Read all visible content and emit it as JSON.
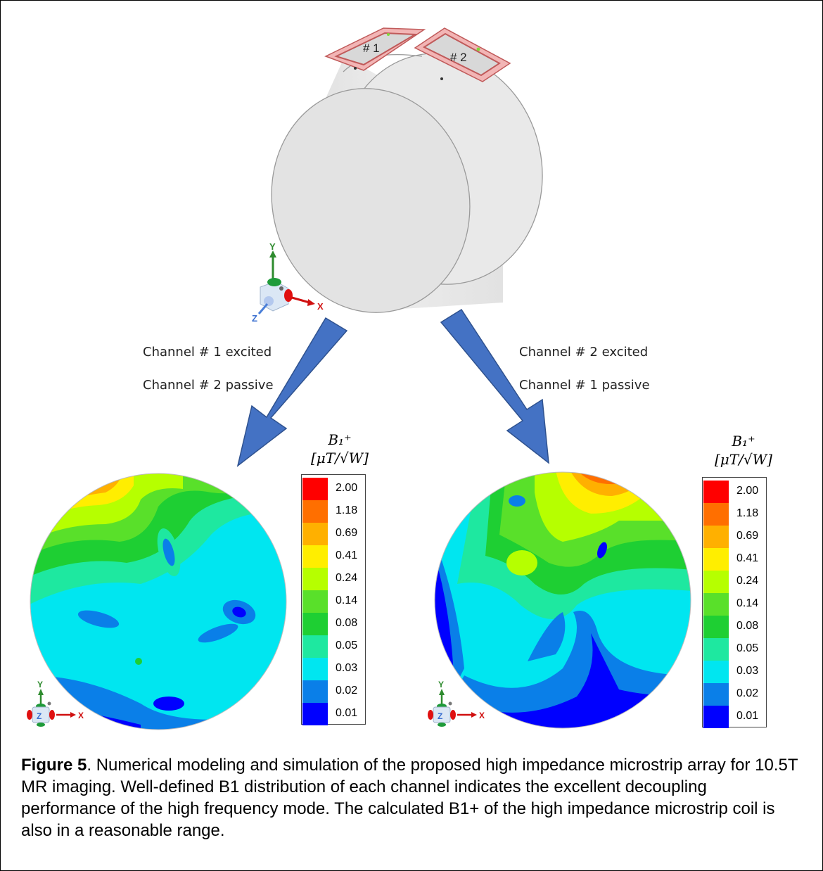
{
  "coil": {
    "label_1": "# 1",
    "label_2": "# 2"
  },
  "axes_3d": {
    "y": "Y",
    "x": "X",
    "z": "Z"
  },
  "left_panel": {
    "line1": "Channel # 1 excited",
    "line2": "Channel # 2 passive"
  },
  "right_panel": {
    "line1": "Channel # 2 excited",
    "line2": "Channel # 1 passive"
  },
  "legend": {
    "title_line1": "B₁⁺",
    "title_line2": "[μT/√W]",
    "levels": [
      {
        "value": "2.00",
        "color": "#ff0000"
      },
      {
        "value": "1.18",
        "color": "#ff6f00"
      },
      {
        "value": "0.69",
        "color": "#ffb000"
      },
      {
        "value": "0.41",
        "color": "#ffee00"
      },
      {
        "value": "0.24",
        "color": "#b6ff00"
      },
      {
        "value": "0.14",
        "color": "#59e02a"
      },
      {
        "value": "0.08",
        "color": "#1ecf33"
      },
      {
        "value": "0.05",
        "color": "#1ee8a0"
      },
      {
        "value": "0.03",
        "color": "#00e6f0"
      },
      {
        "value": "0.02",
        "color": "#0a7fe8"
      },
      {
        "value": "0.01",
        "color": "#0000ff"
      }
    ]
  },
  "plane_axes": {
    "y": "Y",
    "x": "X",
    "z": "Z"
  },
  "caption": {
    "label": "Figure 5",
    "text": ". Numerical modeling and simulation of the proposed high impedance microstrip array for 10.5T MR imaging. Well-defined B1 distribution of each channel indicates the excellent decoupling performance of the high frequency mode. The calculated B1+ of the high impedance microstrip coil is also in a reasonable range."
  },
  "colors": {
    "arrow": "#4472c4",
    "phantom": "#e6e6e6",
    "coil": "#e8898c"
  }
}
